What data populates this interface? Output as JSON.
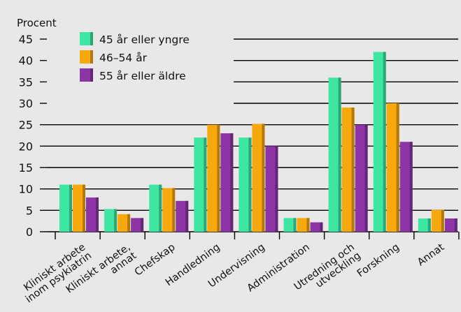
{
  "chart_data": {
    "type": "bar",
    "ylabel": "Procent",
    "ylim": [
      0,
      45
    ],
    "yticks": [
      0,
      5,
      10,
      15,
      20,
      25,
      30,
      35,
      40,
      45
    ],
    "grid": true,
    "legend_position": "top-left",
    "categories": [
      [
        "Kliniskt arbete",
        "inom psykiatrin"
      ],
      [
        "Kliniskt arbete,",
        "annat"
      ],
      [
        "Chefskap"
      ],
      [
        "Handledning"
      ],
      [
        "Undervisning"
      ],
      [
        "Administration"
      ],
      [
        "Utredning och",
        "utveckling"
      ],
      [
        "Forskning"
      ],
      [
        "Annat"
      ]
    ],
    "series": [
      {
        "name": "45 år eller yngre",
        "color": "#3ee6a3",
        "values": [
          11,
          5.3,
          11,
          22,
          22,
          3.2,
          36,
          42,
          3.1
        ]
      },
      {
        "name": "46–54 år",
        "color": "#f7a80d",
        "values": [
          11,
          4.1,
          10.2,
          25,
          25.2,
          3.2,
          29,
          30,
          5.1
        ]
      },
      {
        "name": "55 år eller äldre",
        "color": "#8d35a6",
        "values": [
          8,
          3.2,
          7.2,
          23,
          20,
          2.2,
          25,
          21,
          3.1
        ]
      }
    ]
  }
}
